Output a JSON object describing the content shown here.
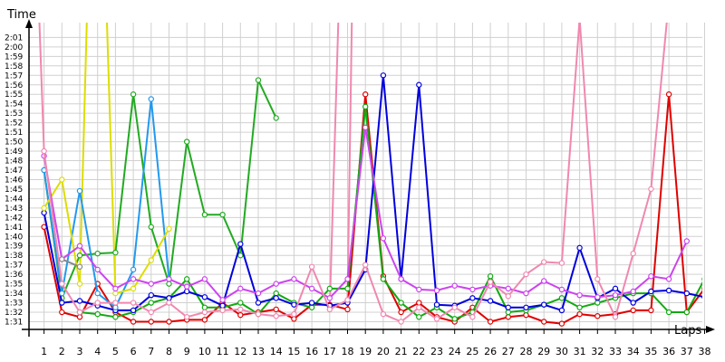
{
  "chart_data": {
    "type": "line",
    "title": "",
    "ylabel": "Time",
    "xlabel": "Laps",
    "grid": true,
    "legend": "none",
    "x": [
      1,
      2,
      3,
      4,
      5,
      6,
      7,
      8,
      9,
      10,
      11,
      12,
      13,
      14,
      15,
      16,
      17,
      18,
      19,
      20,
      21,
      22,
      23,
      24,
      25,
      26,
      27,
      28,
      29,
      30,
      31,
      32,
      33,
      34,
      35,
      36,
      37,
      38
    ],
    "x_range": [
      1,
      38
    ],
    "y_range": [
      91,
      122
    ],
    "y_ticks": [
      "1:31",
      "1:32",
      "1:33",
      "1:34",
      "1:35",
      "1:36",
      "1:37",
      "1:38",
      "1:39",
      "1:40",
      "1:41",
      "1:42",
      "1:43",
      "1:44",
      "1:45",
      "1:46",
      "1:47",
      "1:48",
      "1:49",
      "1:50",
      "1:51",
      "1:52",
      "1:53",
      "1:54",
      "1:55",
      "1:56",
      "1:57",
      "1:58",
      "1:59",
      "2:00",
      "2:01"
    ],
    "y_tick_values": [
      91,
      92,
      93,
      94,
      95,
      96,
      97,
      98,
      99,
      100,
      101,
      102,
      103,
      104,
      105,
      106,
      107,
      108,
      109,
      110,
      111,
      112,
      113,
      114,
      115,
      116,
      117,
      118,
      119,
      120,
      121
    ],
    "series": [
      {
        "color": "#e00000",
        "values": [
          101,
          92,
          91.5,
          95,
          92,
          91,
          91,
          91,
          91.2,
          91.2,
          93,
          91.7,
          92,
          92.3,
          91.3,
          92.8,
          92.8,
          92.3,
          115,
          95.8,
          92,
          93,
          91.5,
          91,
          92.5,
          91,
          91.5,
          91.7,
          91,
          90.8,
          91.8,
          91.6,
          91.8,
          92.2,
          92.2,
          115,
          92,
          94.5
        ]
      },
      {
        "color": "#22aa22",
        "values": [
          107,
          93.5,
          98,
          98.2,
          98.3,
          115,
          101,
          95,
          110,
          102.3,
          102.3,
          98,
          116.5,
          112.5,
          null,
          null,
          null,
          null,
          null,
          null,
          null,
          null,
          null,
          null,
          null,
          null,
          null,
          null,
          null,
          null,
          null,
          null,
          null,
          null,
          null,
          null,
          null,
          null
        ]
      },
      {
        "color": "#11aa11",
        "values": [
          null,
          null,
          92,
          91.8,
          91.5,
          92,
          93,
          93.5,
          95.5,
          92.5,
          92.5,
          93,
          91.8,
          94,
          93,
          92.5,
          94.5,
          94.5,
          113.7,
          95.5,
          93,
          91.5,
          92.5,
          91.3,
          92,
          95.8,
          92,
          92.2,
          92.8,
          93.5,
          92.5,
          93,
          93.5,
          94,
          94,
          92,
          92,
          95.5
        ]
      },
      {
        "color": "#0000dd",
        "values": [
          102.5,
          93,
          93.2,
          92.7,
          92.2,
          92.2,
          93.8,
          93.5,
          94.2,
          93.6,
          92.7,
          99.2,
          93,
          93.5,
          92.8,
          93,
          92.7,
          93,
          96.5,
          117,
          95.5,
          116,
          92.8,
          92.7,
          93.5,
          93.2,
          92.5,
          92.5,
          92.8,
          92.2,
          98.8,
          93.5,
          94.5,
          93,
          94.2,
          94.3,
          94,
          93.6
        ]
      },
      {
        "color": "#2299ee",
        "values": [
          107,
          94,
          104.8,
          94,
          92.5,
          96.5,
          114.5,
          95.5,
          null,
          null,
          null,
          null,
          null,
          null,
          null,
          null,
          null,
          null,
          null,
          null,
          null,
          null,
          null,
          null,
          null,
          null,
          null,
          null,
          null,
          null,
          null,
          null,
          null,
          null,
          null,
          null,
          null,
          null
        ]
      },
      {
        "color": "#dddd00",
        "values": [
          103,
          106,
          95,
          null,
          94,
          94.5,
          97.5,
          100.8,
          null,
          null,
          null,
          null,
          null,
          null,
          null,
          null,
          null,
          null,
          null,
          null,
          null,
          null,
          null,
          null,
          null,
          null,
          null,
          null,
          null,
          null,
          null,
          null,
          null,
          null,
          null,
          null,
          null,
          null
        ]
      },
      {
        "color": "#cc44ee",
        "values": [
          108.5,
          97.6,
          99,
          96.5,
          94.5,
          95.5,
          95,
          95.5,
          94.7,
          95.5,
          93.3,
          94.5,
          94,
          95,
          95.5,
          94.5,
          93.5,
          95.5,
          111.5,
          99.8,
          95.5,
          94.4,
          94.3,
          94.8,
          94.4,
          94.8,
          94.5,
          94,
          95.3,
          94.4,
          93.8,
          93.6,
          93.8,
          94.2,
          95.8,
          95.5,
          99.5,
          null
        ]
      },
      {
        "color": "#f088b0",
        "values": [
          109,
          95,
          92,
          93,
          93,
          93,
          92,
          93,
          91.5,
          92,
          92.2,
          92.3,
          91.8,
          91.6,
          91.8,
          96.8,
          92.3,
          93.3,
          97,
          91.8,
          91,
          92.5,
          91.3,
          92.5,
          91.5,
          95.2,
          93.7,
          96,
          97.3,
          97.2,
          123,
          95.5,
          91.5,
          98.2,
          105,
          125,
          null,
          null
        ]
      },
      {
        "color": "#888888",
        "values": [
          null,
          97.6,
          96.8,
          null,
          null,
          null,
          null,
          null,
          null,
          null,
          null,
          null,
          null,
          null,
          null,
          null,
          null,
          null,
          null,
          null,
          null,
          null,
          null,
          null,
          null,
          null,
          null,
          null,
          null,
          null,
          null,
          null,
          null,
          null,
          null,
          null,
          null,
          null
        ]
      }
    ],
    "extensions": [
      {
        "color": "#f088b0",
        "from": [
          1,
          109
        ],
        "to": [
          0.6,
          130
        ]
      },
      {
        "color": "#dddd00",
        "from": [
          3,
          95
        ],
        "to": [
          3.5,
          130
        ]
      },
      {
        "color": "#dddd00",
        "from": [
          5,
          94
        ],
        "to": [
          4.4,
          130
        ]
      },
      {
        "color": "#f088b0",
        "from": [
          17,
          92.3
        ],
        "to": [
          17.6,
          130
        ]
      },
      {
        "color": "#f088b0",
        "from": [
          18,
          93.3
        ],
        "to": [
          18.3,
          130
        ]
      }
    ]
  }
}
